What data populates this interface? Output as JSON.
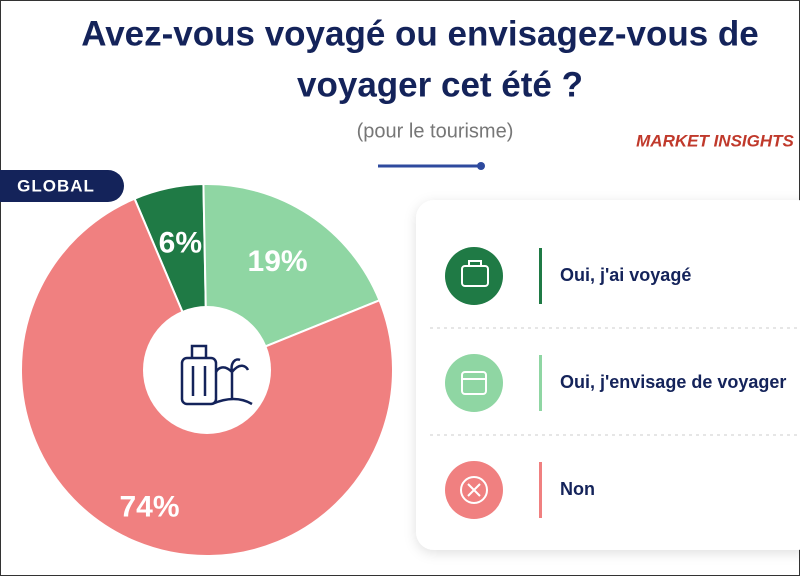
{
  "title_lines": [
    "Avez-vous voyagé ou envisagez-vous de",
    "voyager cet été ?"
  ],
  "subtitle": "(pour le tourisme)",
  "brand": "MARKET INSIGHTS",
  "badge": "GLOBAL",
  "chart_data": {
    "type": "pie",
    "categories": [
      "Oui, j'ai voyagé",
      "Oui, j'envisage de voyager",
      "Non"
    ],
    "values": [
      6,
      19,
      74
    ],
    "value_labels": [
      "6%",
      "19%",
      "74%"
    ],
    "colors": [
      "#1f7a45",
      "#8fd6a3",
      "#f08080"
    ]
  }
}
